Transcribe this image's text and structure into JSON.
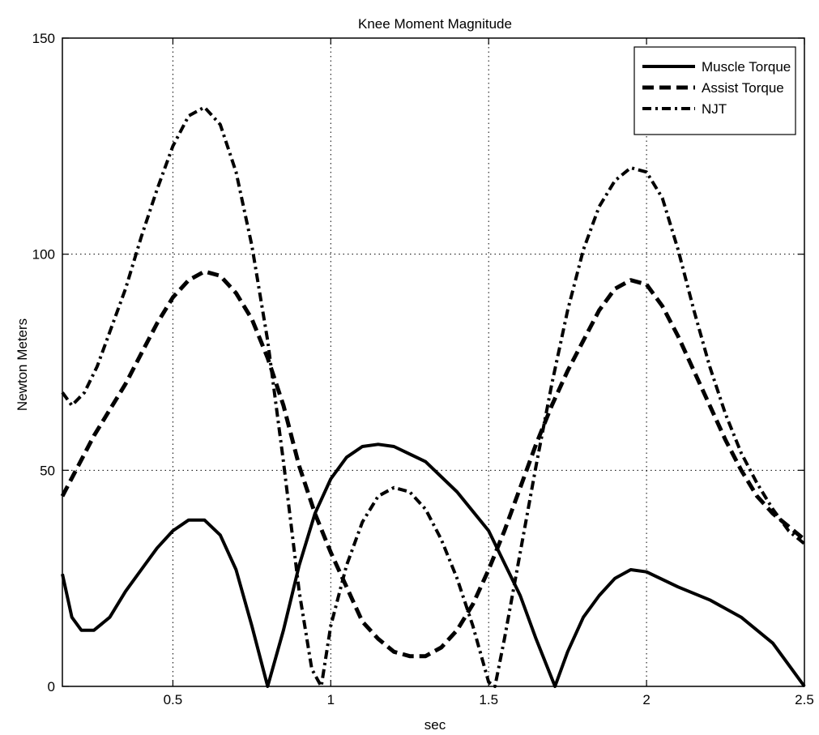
{
  "chart_data": {
    "type": "line",
    "title": "Knee Moment Magnitude",
    "xlabel": "sec",
    "ylabel": "Newton Meters",
    "xlim": [
      0.15,
      2.5
    ],
    "ylim": [
      0,
      150
    ],
    "xticks": [
      0.5,
      1,
      1.5,
      2,
      2.5
    ],
    "xtick_labels": [
      "0.5",
      "1",
      "1.5",
      "2",
      "2.5"
    ],
    "yticks": [
      0,
      50,
      100,
      150
    ],
    "ytick_labels": [
      "0",
      "50",
      "100",
      "150"
    ],
    "grid": true,
    "legend_position": "top-right",
    "series": [
      {
        "name": "Muscle Torque",
        "dash": "solid",
        "color": "#000000",
        "points": [
          [
            0.15,
            26
          ],
          [
            0.18,
            16
          ],
          [
            0.21,
            13
          ],
          [
            0.25,
            13
          ],
          [
            0.3,
            16
          ],
          [
            0.35,
            22
          ],
          [
            0.4,
            27
          ],
          [
            0.45,
            32
          ],
          [
            0.5,
            36
          ],
          [
            0.55,
            38.5
          ],
          [
            0.6,
            38.5
          ],
          [
            0.65,
            35
          ],
          [
            0.7,
            27
          ],
          [
            0.75,
            14
          ],
          [
            0.8,
            0
          ],
          [
            0.85,
            13
          ],
          [
            0.9,
            28
          ],
          [
            0.95,
            40
          ],
          [
            1.0,
            48
          ],
          [
            1.05,
            53
          ],
          [
            1.1,
            55.5
          ],
          [
            1.15,
            56
          ],
          [
            1.2,
            55.5
          ],
          [
            1.3,
            52
          ],
          [
            1.4,
            45
          ],
          [
            1.5,
            36
          ],
          [
            1.6,
            21
          ],
          [
            1.65,
            11
          ],
          [
            1.71,
            0
          ],
          [
            1.75,
            8
          ],
          [
            1.8,
            16
          ],
          [
            1.85,
            21
          ],
          [
            1.9,
            25
          ],
          [
            1.95,
            27
          ],
          [
            2.0,
            26.5
          ],
          [
            2.1,
            23
          ],
          [
            2.2,
            20
          ],
          [
            2.3,
            16
          ],
          [
            2.4,
            10
          ],
          [
            2.45,
            5
          ],
          [
            2.5,
            0
          ]
        ]
      },
      {
        "name": "Assist Torque",
        "dash": "dashed",
        "color": "#000000",
        "points": [
          [
            0.15,
            44
          ],
          [
            0.2,
            51
          ],
          [
            0.25,
            58
          ],
          [
            0.3,
            64
          ],
          [
            0.35,
            70
          ],
          [
            0.4,
            77
          ],
          [
            0.45,
            84
          ],
          [
            0.5,
            90
          ],
          [
            0.55,
            94
          ],
          [
            0.6,
            96
          ],
          [
            0.65,
            95
          ],
          [
            0.7,
            91
          ],
          [
            0.75,
            85
          ],
          [
            0.8,
            76
          ],
          [
            0.85,
            65
          ],
          [
            0.9,
            51
          ],
          [
            0.95,
            40
          ],
          [
            1.0,
            31
          ],
          [
            1.05,
            23
          ],
          [
            1.1,
            15
          ],
          [
            1.15,
            11
          ],
          [
            1.2,
            8
          ],
          [
            1.25,
            7
          ],
          [
            1.3,
            7
          ],
          [
            1.35,
            9
          ],
          [
            1.4,
            13
          ],
          [
            1.45,
            19
          ],
          [
            1.5,
            27
          ],
          [
            1.55,
            36
          ],
          [
            1.6,
            46
          ],
          [
            1.65,
            56
          ],
          [
            1.7,
            65
          ],
          [
            1.75,
            73
          ],
          [
            1.8,
            80
          ],
          [
            1.85,
            87
          ],
          [
            1.9,
            92
          ],
          [
            1.95,
            94
          ],
          [
            2.0,
            93
          ],
          [
            2.05,
            88
          ],
          [
            2.1,
            81
          ],
          [
            2.15,
            73
          ],
          [
            2.2,
            65
          ],
          [
            2.25,
            57
          ],
          [
            2.3,
            50
          ],
          [
            2.35,
            44
          ],
          [
            2.4,
            40
          ],
          [
            2.45,
            37
          ],
          [
            2.5,
            34
          ]
        ]
      },
      {
        "name": "NJT",
        "dash": "dashdot",
        "color": "#000000",
        "points": [
          [
            0.15,
            68
          ],
          [
            0.18,
            65
          ],
          [
            0.22,
            68
          ],
          [
            0.26,
            74
          ],
          [
            0.3,
            82
          ],
          [
            0.35,
            92
          ],
          [
            0.4,
            104
          ],
          [
            0.45,
            115
          ],
          [
            0.5,
            125
          ],
          [
            0.55,
            132
          ],
          [
            0.6,
            134
          ],
          [
            0.65,
            130
          ],
          [
            0.7,
            119
          ],
          [
            0.75,
            102
          ],
          [
            0.8,
            80
          ],
          [
            0.85,
            52
          ],
          [
            0.9,
            22
          ],
          [
            0.94,
            4
          ],
          [
            0.97,
            0
          ],
          [
            1.0,
            14
          ],
          [
            1.05,
            28
          ],
          [
            1.1,
            38
          ],
          [
            1.15,
            44
          ],
          [
            1.2,
            46
          ],
          [
            1.25,
            45
          ],
          [
            1.3,
            41
          ],
          [
            1.35,
            34
          ],
          [
            1.4,
            25
          ],
          [
            1.45,
            14
          ],
          [
            1.5,
            1
          ],
          [
            1.52,
            0
          ],
          [
            1.55,
            11
          ],
          [
            1.6,
            31
          ],
          [
            1.65,
            51
          ],
          [
            1.7,
            70
          ],
          [
            1.75,
            87
          ],
          [
            1.8,
            101
          ],
          [
            1.85,
            111
          ],
          [
            1.9,
            117
          ],
          [
            1.95,
            120
          ],
          [
            2.0,
            119
          ],
          [
            2.05,
            113
          ],
          [
            2.1,
            101
          ],
          [
            2.15,
            87
          ],
          [
            2.2,
            74
          ],
          [
            2.25,
            63
          ],
          [
            2.3,
            54
          ],
          [
            2.35,
            47
          ],
          [
            2.4,
            41
          ],
          [
            2.45,
            36
          ],
          [
            2.5,
            33
          ]
        ]
      }
    ]
  }
}
